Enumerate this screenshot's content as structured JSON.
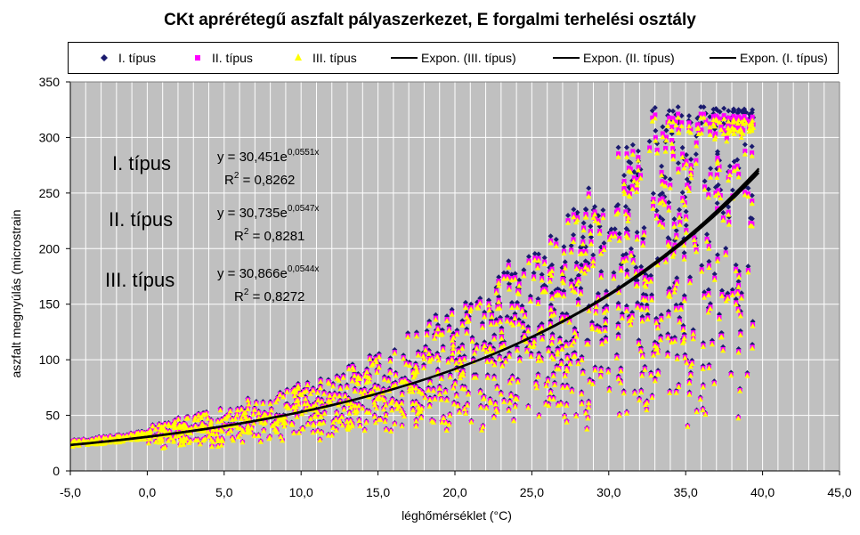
{
  "chart_data": {
    "type": "scatter",
    "title": "CKt aprérétegű aszfalt pályaszerkezet, E forgalmi terhelési osztály",
    "xlabel": "léghőmérséklet (°C)",
    "ylabel": "aszfalt megnyúlás (microstrain",
    "xlim": [
      -5,
      45
    ],
    "ylim": [
      0,
      350
    ],
    "x_ticks": [
      "-5,0",
      "0,0",
      "5,0",
      "10,0",
      "15,0",
      "20,0",
      "25,0",
      "30,0",
      "35,0",
      "40,0",
      "45,0"
    ],
    "y_ticks": [
      "0",
      "50",
      "100",
      "150",
      "200",
      "250",
      "300",
      "350"
    ],
    "grid": true,
    "legend_position": "top",
    "plot_background": "#c0c0c0",
    "series": [
      {
        "name": "I. típus",
        "marker": "diamond",
        "color": "#1a1a6e"
      },
      {
        "name": "II. típus",
        "marker": "square",
        "color": "#ff00ff"
      },
      {
        "name": "III. típus",
        "marker": "triangle",
        "color": "#ffff00"
      }
    ],
    "trendlines": [
      {
        "name": "Expon. (III. típus)",
        "a": 30.866,
        "b": 0.0544,
        "color": "#000000"
      },
      {
        "name": "Expon. (II. típus)",
        "a": 30.735,
        "b": 0.0547,
        "color": "#000000"
      },
      {
        "name": "Expon. (I. típus)",
        "a": 30.451,
        "b": 0.0551,
        "color": "#000000"
      }
    ],
    "annotations": [
      {
        "label": "I. típus",
        "eq_prefix": "y = 30,451e",
        "eq_exp": "0,0551x",
        "r2_prefix": "R",
        "r2_sup": "2",
        "r2_value": " = 0,8262"
      },
      {
        "label": "II. típus",
        "eq_prefix": "y = 30,735e",
        "eq_exp": "0,0547x",
        "r2_prefix": "R",
        "r2_sup": "2",
        "r2_value": " = 0,8281"
      },
      {
        "label": "III. típus",
        "eq_prefix": "y = 30,866e",
        "eq_exp": "0,0544x",
        "r2_prefix": "R",
        "r2_sup": "2",
        "r2_value": " = 0,8272"
      }
    ]
  }
}
